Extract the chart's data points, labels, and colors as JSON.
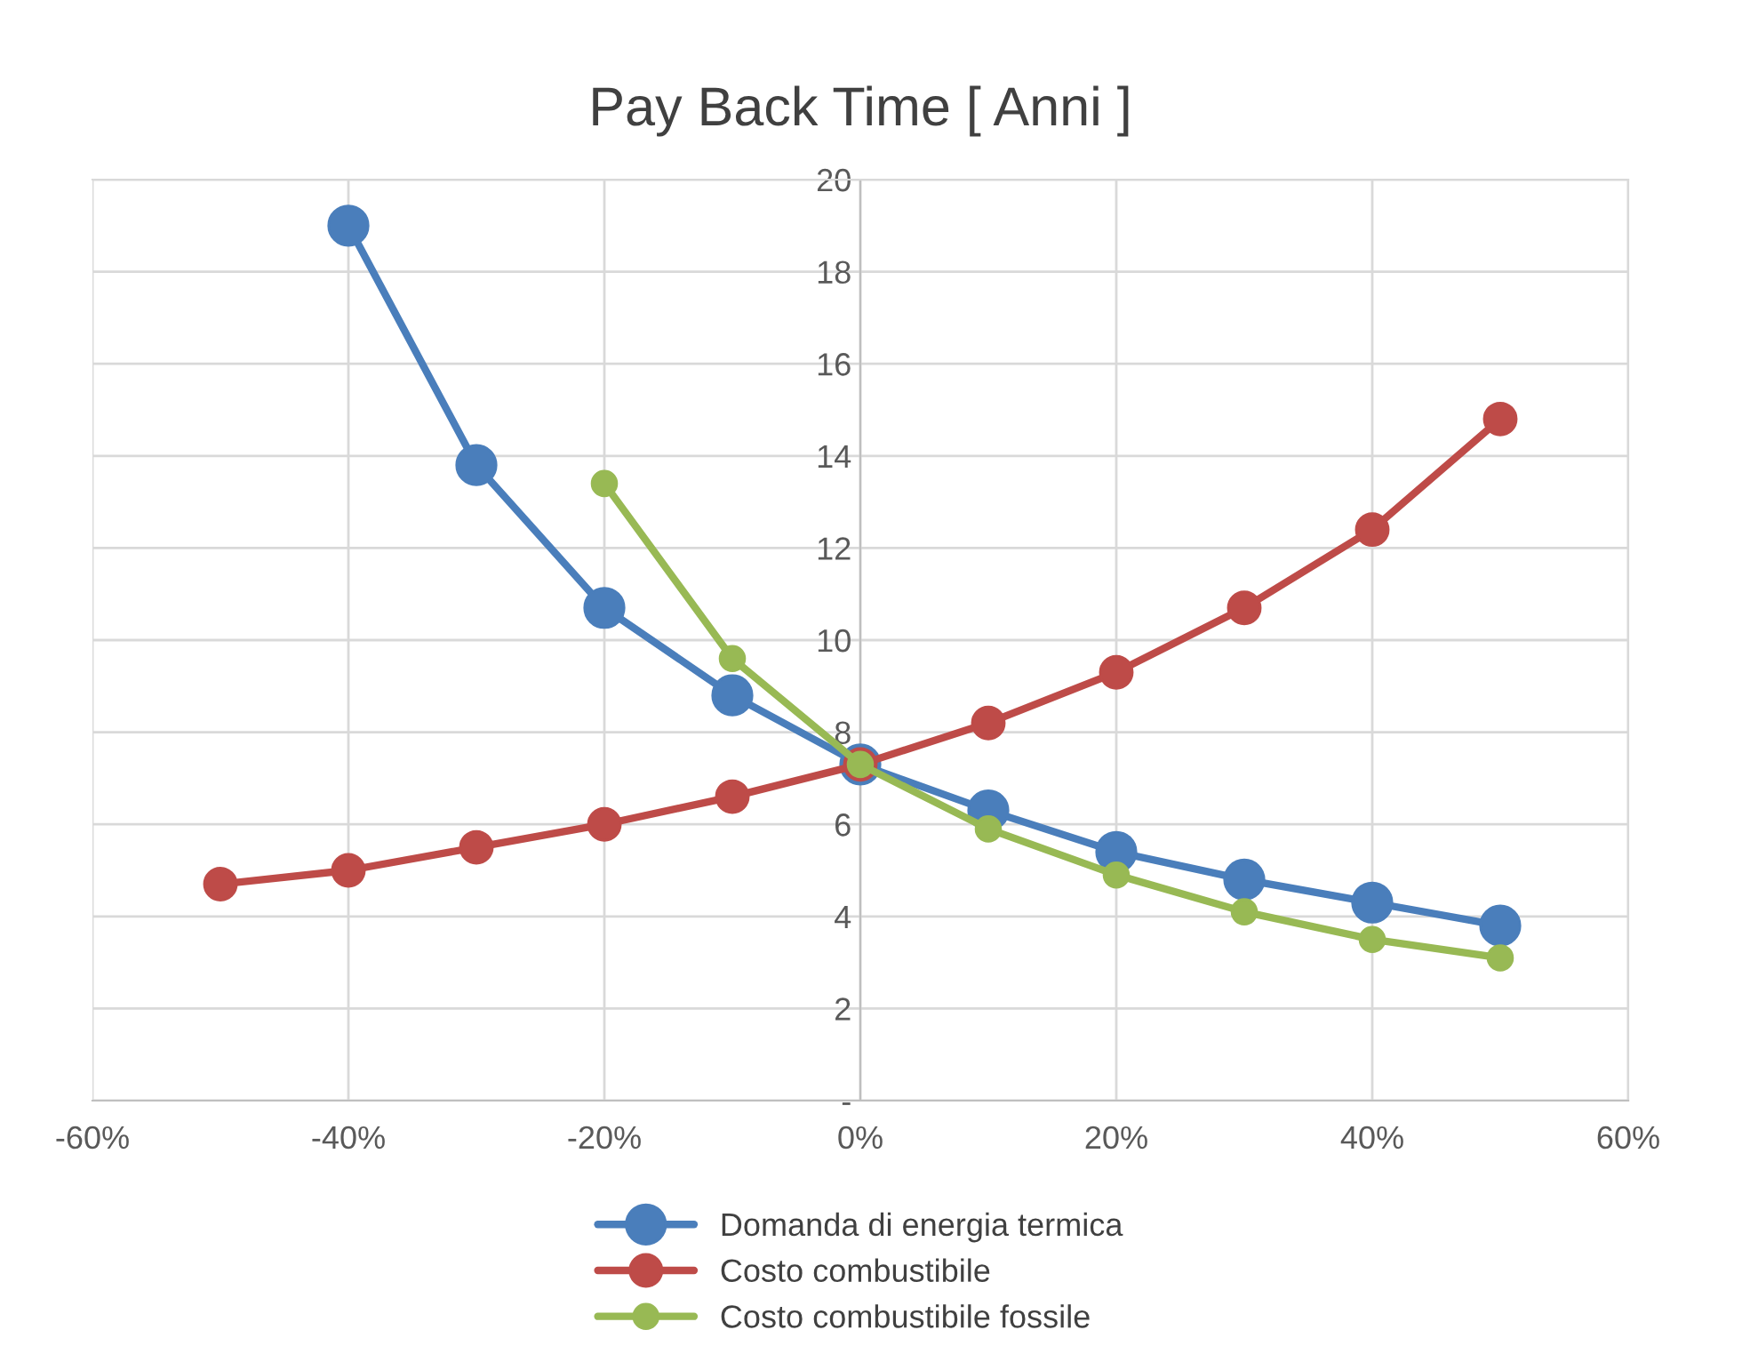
{
  "chart_data": {
    "type": "line",
    "title": "Pay Back Time [ Anni ]",
    "xlim": [
      -60,
      60
    ],
    "xticks": [
      {
        "value": -60,
        "label": "-60%"
      },
      {
        "value": -40,
        "label": "-40%"
      },
      {
        "value": -20,
        "label": "-20%"
      },
      {
        "value": 0,
        "label": "0%"
      },
      {
        "value": 20,
        "label": "20%"
      },
      {
        "value": 40,
        "label": "40%"
      },
      {
        "value": 60,
        "label": "60%"
      }
    ],
    "ylim": [
      0,
      20
    ],
    "yticks": [
      {
        "value": 0,
        "label": "-"
      },
      2,
      4,
      6,
      8,
      10,
      12,
      14,
      16,
      18,
      20
    ],
    "grid": true,
    "legend": "bottom",
    "marker": "circle",
    "line_style": "solid",
    "series": [
      {
        "name": "Domanda di energia termica",
        "color": "#4a7ebb",
        "x": [
          -40,
          -30,
          -20,
          -10,
          0,
          10,
          20,
          30,
          40,
          50
        ],
        "values": [
          19.0,
          13.8,
          10.7,
          8.8,
          7.3,
          6.3,
          5.4,
          4.8,
          4.3,
          3.8
        ]
      },
      {
        "name": "Costo combustibile",
        "color": "#be4b48",
        "x": [
          -50,
          -40,
          -30,
          -20,
          -10,
          0,
          10,
          20,
          30,
          40,
          50
        ],
        "values": [
          4.7,
          5.0,
          5.5,
          6.0,
          6.6,
          7.3,
          8.2,
          9.3,
          10.7,
          12.4,
          14.8
        ]
      },
      {
        "name": "Costo combustibile fossile",
        "color": "#98b954",
        "x": [
          -20,
          -10,
          0,
          10,
          20,
          30,
          40,
          50
        ],
        "values": [
          13.4,
          9.6,
          7.3,
          5.9,
          4.9,
          4.1,
          3.5,
          3.1
        ]
      }
    ]
  }
}
